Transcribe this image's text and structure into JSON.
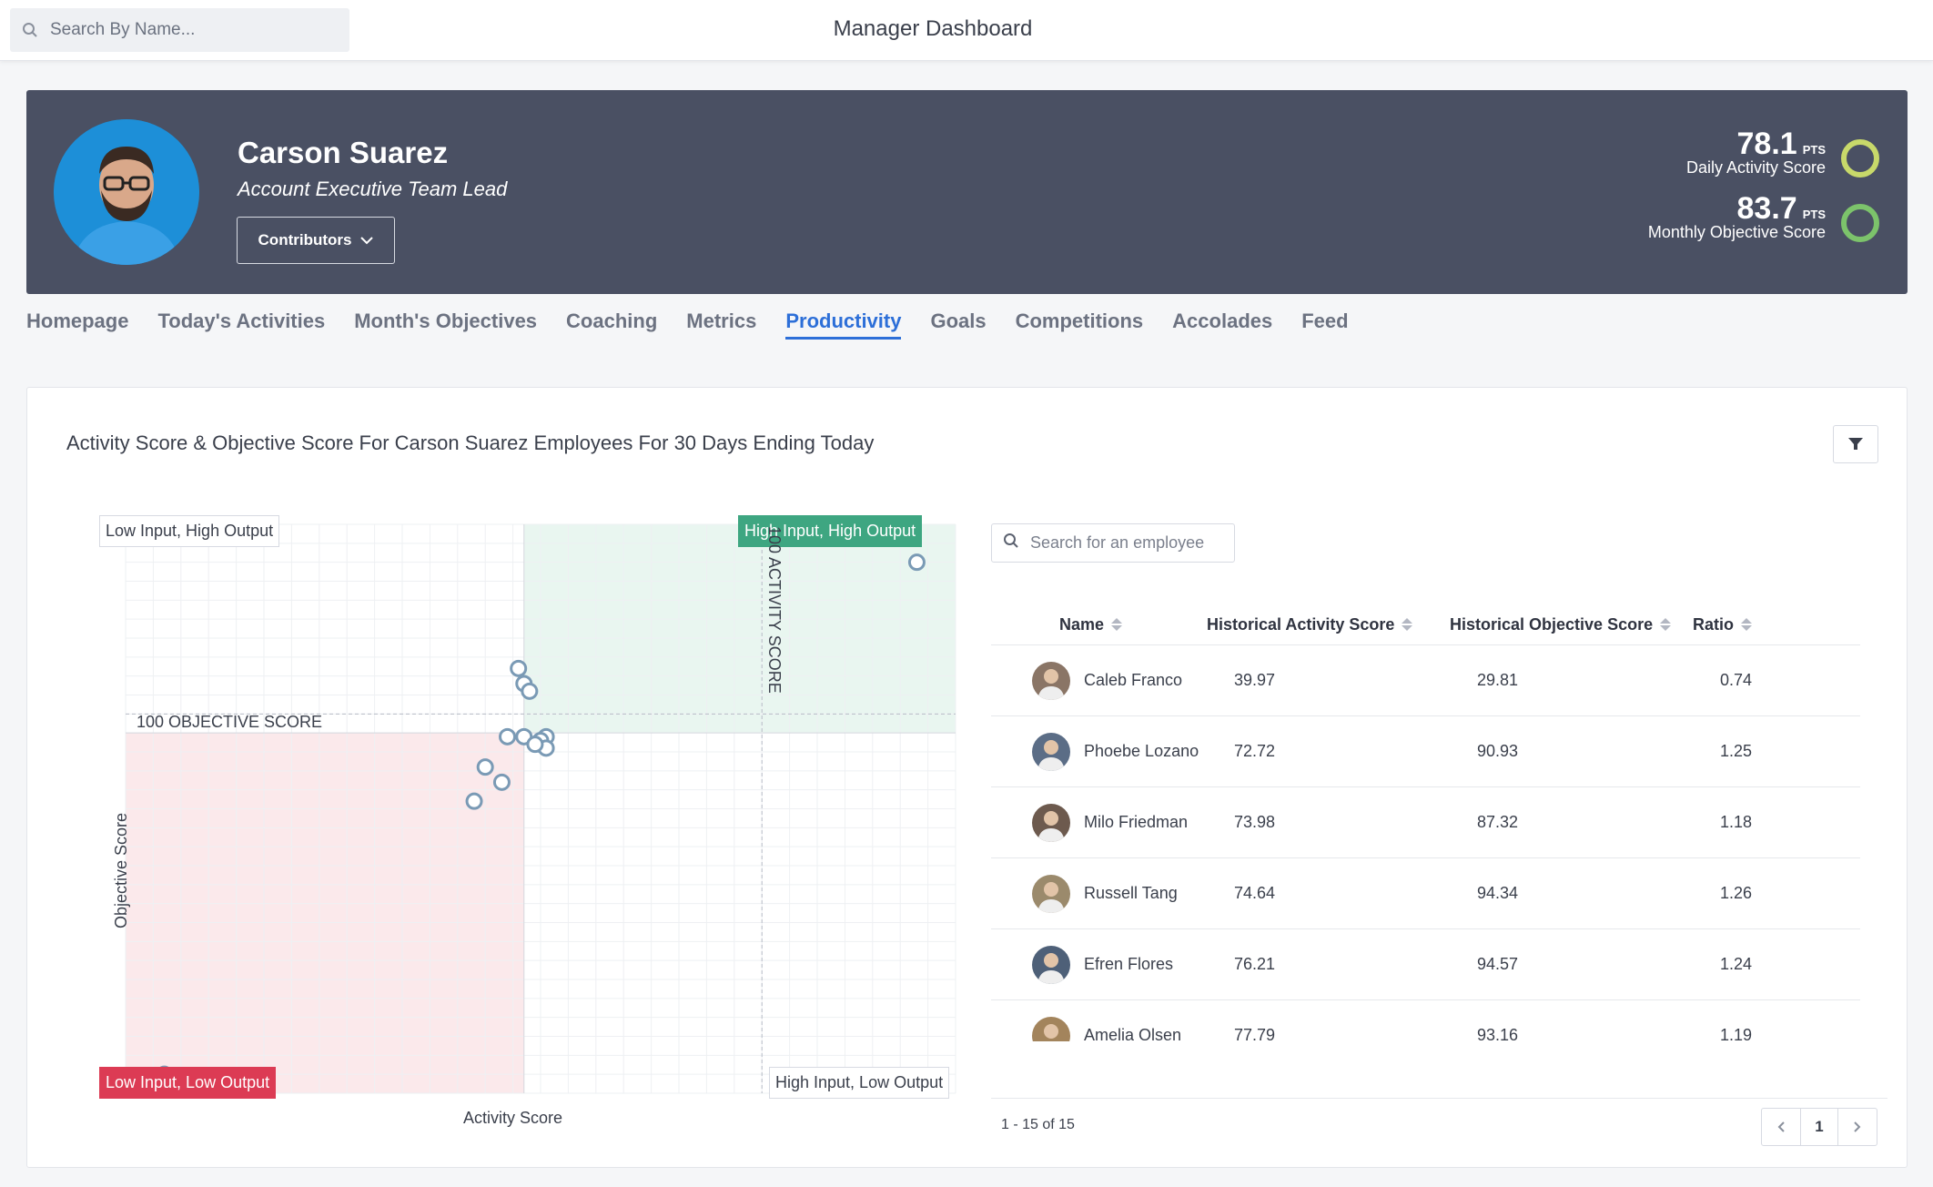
{
  "topbar": {
    "search_placeholder": "Search By Name...",
    "title": "Manager Dashboard"
  },
  "profile": {
    "name": "Carson Suarez",
    "role": "Account Executive Team Lead",
    "contributors_label": "Contributors",
    "daily": {
      "value": "78.1",
      "unit": "PTS",
      "label": "Daily Activity Score",
      "ring_color": "#c8d96a"
    },
    "monthly": {
      "value": "83.7",
      "unit": "PTS",
      "label": "Monthly Objective Score",
      "ring_color": "#7cc36b"
    }
  },
  "tabs": [
    {
      "label": "Homepage",
      "active": false
    },
    {
      "label": "Today's Activities",
      "active": false
    },
    {
      "label": "Month's Objectives",
      "active": false
    },
    {
      "label": "Coaching",
      "active": false
    },
    {
      "label": "Metrics",
      "active": false
    },
    {
      "label": "Productivity",
      "active": true
    },
    {
      "label": "Goals",
      "active": false
    },
    {
      "label": "Competitions",
      "active": false
    },
    {
      "label": "Accolades",
      "active": false
    },
    {
      "label": "Feed",
      "active": false
    }
  ],
  "card": {
    "title": "Activity Score & Objective Score For Carson Suarez Employees For 30 Days Ending Today"
  },
  "chart_data": {
    "type": "scatter",
    "xlabel": "Activity Score",
    "ylabel": "Objective Score",
    "xlim": [
      0,
      150
    ],
    "ylim": [
      0,
      150
    ],
    "reference_lines": {
      "objective": "100 OBJECTIVE SCORE",
      "activity": "100 ACTIVITY SCORE"
    },
    "quadrants": [
      "Low Input, High Output",
      "High Input, High Output",
      "Low Input, Low Output",
      "High Input, Low Output"
    ],
    "points": [
      {
        "x": 143,
        "y": 140
      },
      {
        "x": 71,
        "y": 112
      },
      {
        "x": 72,
        "y": 108
      },
      {
        "x": 73,
        "y": 106
      },
      {
        "x": 75,
        "y": 92
      },
      {
        "x": 76,
        "y": 94
      },
      {
        "x": 75,
        "y": 93
      },
      {
        "x": 76,
        "y": 91
      },
      {
        "x": 72,
        "y": 94
      },
      {
        "x": 69,
        "y": 94
      },
      {
        "x": 74,
        "y": 92
      },
      {
        "x": 65,
        "y": 86
      },
      {
        "x": 68,
        "y": 82
      },
      {
        "x": 63,
        "y": 77
      },
      {
        "x": 7,
        "y": 5
      }
    ],
    "colors": {
      "point": "#7a9ab5",
      "green_zone": "#e9f6f0",
      "red_zone": "#fbe9eb"
    }
  },
  "table": {
    "search_placeholder": "Search for an employee",
    "columns": [
      "Name",
      "Historical Activity Score",
      "Historical Objective Score",
      "Ratio"
    ],
    "rows": [
      {
        "name": "Caleb Franco",
        "activity": "39.97",
        "objective": "29.81",
        "ratio": "0.74"
      },
      {
        "name": "Phoebe Lozano",
        "activity": "72.72",
        "objective": "90.93",
        "ratio": "1.25"
      },
      {
        "name": "Milo Friedman",
        "activity": "73.98",
        "objective": "87.32",
        "ratio": "1.18"
      },
      {
        "name": "Russell Tang",
        "activity": "74.64",
        "objective": "94.34",
        "ratio": "1.26"
      },
      {
        "name": "Efren Flores",
        "activity": "76.21",
        "objective": "94.57",
        "ratio": "1.24"
      },
      {
        "name": "Amelia Olsen",
        "activity": "77.79",
        "objective": "93.16",
        "ratio": "1.19"
      }
    ],
    "range": "1 - 15 of 15",
    "page": "1"
  }
}
